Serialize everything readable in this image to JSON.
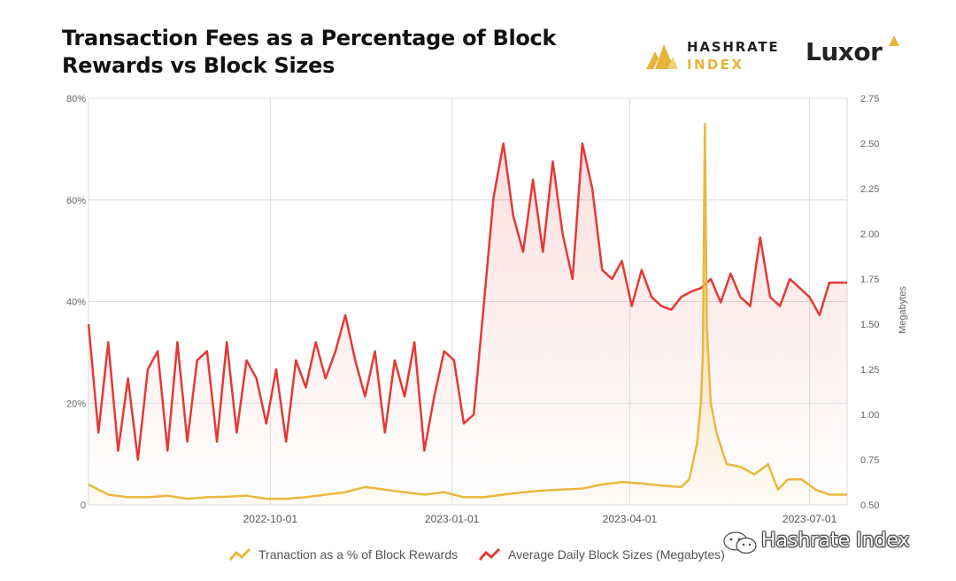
{
  "title": "Transaction Fees as a Percentage of Block Rewards vs Block Sizes",
  "brand": {
    "hashrate_line1": "HASHRATE",
    "hashrate_line2": "INDEX",
    "luxor": "Luxor",
    "watermark": "Hashrate Index",
    "colors": {
      "dark": "#222222",
      "gold": "#e6b43a"
    }
  },
  "legend": {
    "fee_label": "Tranaction as a % of Block Rewards",
    "size_label": "Average Daily Block Sizes (Megabytes)"
  },
  "chart_data": {
    "type": "line",
    "title": "Transaction Fees as a Percentage of Block Rewards vs Block Sizes",
    "x_range": [
      "2022-07-01",
      "2023-07-20"
    ],
    "x_ticks": [
      "2022-10-01",
      "2023-01-01",
      "2023-04-01",
      "2023-07-01"
    ],
    "y_left": {
      "range": [
        0,
        80
      ],
      "ticks": [
        0,
        20,
        40,
        60,
        80
      ],
      "tick_labels": [
        "0",
        "20%",
        "40%",
        "60%",
        "80%"
      ]
    },
    "y_right": {
      "label": "Megabytes",
      "range": [
        0.5,
        2.75
      ],
      "ticks": [
        0.5,
        0.75,
        1.0,
        1.25,
        1.5,
        1.75,
        2.0,
        2.25,
        2.5,
        2.75
      ],
      "tick_labels": [
        "0.50",
        "0.75",
        "1.00",
        "1.25",
        "1.50",
        "1.75",
        "2.00",
        "2.25",
        "2.50",
        "2.75"
      ]
    },
    "grid": true,
    "legend_position": "bottom",
    "series": [
      {
        "name": "Tranaction as a % of Block Rewards",
        "axis": "left",
        "color": "#e8b93c",
        "x": [
          "2022-07-01",
          "2022-07-11",
          "2022-07-21",
          "2022-07-31",
          "2022-08-10",
          "2022-08-20",
          "2022-08-30",
          "2022-09-09",
          "2022-09-19",
          "2022-09-29",
          "2022-10-09",
          "2022-10-19",
          "2022-10-29",
          "2022-11-08",
          "2022-11-18",
          "2022-11-28",
          "2022-12-08",
          "2022-12-18",
          "2022-12-28",
          "2023-01-07",
          "2023-01-17",
          "2023-01-27",
          "2023-02-06",
          "2023-02-16",
          "2023-02-26",
          "2023-03-08",
          "2023-03-18",
          "2023-03-28",
          "2023-04-07",
          "2023-04-17",
          "2023-04-27",
          "2023-05-01",
          "2023-05-05",
          "2023-05-07",
          "2023-05-08",
          "2023-05-09",
          "2023-05-10",
          "2023-05-12",
          "2023-05-15",
          "2023-05-20",
          "2023-05-27",
          "2023-06-03",
          "2023-06-10",
          "2023-06-15",
          "2023-06-20",
          "2023-06-27",
          "2023-07-04",
          "2023-07-11",
          "2023-07-20"
        ],
        "values": [
          4,
          2,
          1.5,
          1.5,
          1.8,
          1.2,
          1.5,
          1.6,
          1.8,
          1.2,
          1.2,
          1.5,
          2,
          2.5,
          3.5,
          3,
          2.5,
          2,
          2.5,
          1.5,
          1.5,
          2,
          2.5,
          2.8,
          3,
          3.2,
          4,
          4.5,
          4.2,
          3.8,
          3.5,
          5,
          12,
          20,
          30,
          75,
          35,
          20,
          14,
          8,
          7.5,
          6,
          8,
          3,
          5,
          5,
          3,
          2,
          2
        ]
      },
      {
        "name": "Average Daily Block Sizes (Megabytes)",
        "axis": "right",
        "color": "#e53935",
        "x": [
          "2022-07-01",
          "2022-07-06",
          "2022-07-11",
          "2022-07-16",
          "2022-07-21",
          "2022-07-26",
          "2022-07-31",
          "2022-08-05",
          "2022-08-10",
          "2022-08-15",
          "2022-08-20",
          "2022-08-25",
          "2022-08-30",
          "2022-09-04",
          "2022-09-09",
          "2022-09-14",
          "2022-09-19",
          "2022-09-24",
          "2022-09-29",
          "2022-10-04",
          "2022-10-09",
          "2022-10-14",
          "2022-10-19",
          "2022-10-24",
          "2022-10-29",
          "2022-11-03",
          "2022-11-08",
          "2022-11-13",
          "2022-11-18",
          "2022-11-23",
          "2022-11-28",
          "2022-12-03",
          "2022-12-08",
          "2022-12-13",
          "2022-12-18",
          "2022-12-23",
          "2022-12-28",
          "2023-01-02",
          "2023-01-07",
          "2023-01-12",
          "2023-01-17",
          "2023-01-22",
          "2023-01-27",
          "2023-02-01",
          "2023-02-06",
          "2023-02-11",
          "2023-02-16",
          "2023-02-21",
          "2023-02-26",
          "2023-03-03",
          "2023-03-08",
          "2023-03-13",
          "2023-03-18",
          "2023-03-23",
          "2023-03-28",
          "2023-04-02",
          "2023-04-07",
          "2023-04-12",
          "2023-04-17",
          "2023-04-22",
          "2023-04-27",
          "2023-05-02",
          "2023-05-07",
          "2023-05-12",
          "2023-05-17",
          "2023-05-22",
          "2023-05-27",
          "2023-06-01",
          "2023-06-06",
          "2023-06-11",
          "2023-06-16",
          "2023-06-21",
          "2023-06-26",
          "2023-07-01",
          "2023-07-06",
          "2023-07-11",
          "2023-07-20"
        ],
        "values": [
          1.5,
          0.9,
          1.4,
          0.8,
          1.2,
          0.75,
          1.25,
          1.35,
          0.8,
          1.4,
          0.85,
          1.3,
          1.35,
          0.85,
          1.4,
          0.9,
          1.3,
          1.2,
          0.95,
          1.25,
          0.85,
          1.3,
          1.15,
          1.4,
          1.2,
          1.35,
          1.55,
          1.3,
          1.1,
          1.35,
          0.9,
          1.3,
          1.1,
          1.4,
          0.8,
          1.1,
          1.35,
          1.3,
          0.95,
          1.0,
          1.6,
          2.2,
          2.5,
          2.1,
          1.9,
          2.3,
          1.9,
          2.4,
          2.0,
          1.75,
          2.5,
          2.25,
          1.8,
          1.75,
          1.85,
          1.6,
          1.8,
          1.65,
          1.6,
          1.58,
          1.65,
          1.68,
          1.7,
          1.75,
          1.62,
          1.78,
          1.65,
          1.6,
          1.98,
          1.65,
          1.6,
          1.75,
          1.7,
          1.65,
          1.55,
          1.73,
          1.73
        ]
      }
    ]
  }
}
